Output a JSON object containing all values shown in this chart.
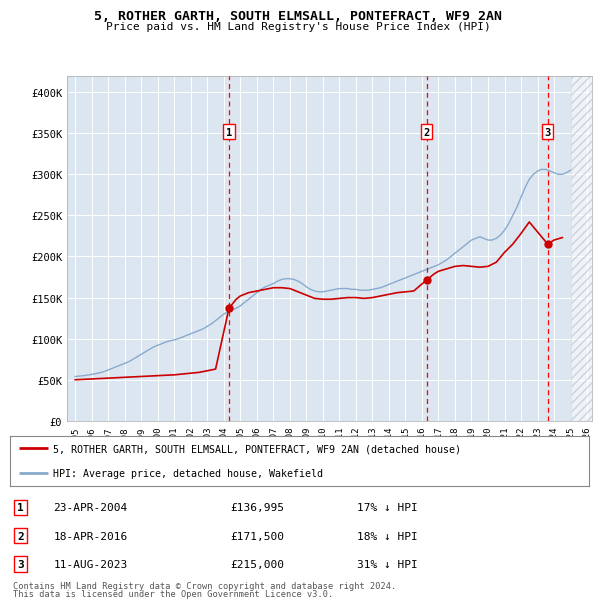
{
  "title_line1": "5, ROTHER GARTH, SOUTH ELMSALL, PONTEFRACT, WF9 2AN",
  "title_line2": "Price paid vs. HM Land Registry's House Price Index (HPI)",
  "background_color": "#dce6f1",
  "grid_color": "#ffffff",
  "ylim": [
    0,
    420000
  ],
  "yticks": [
    0,
    50000,
    100000,
    150000,
    200000,
    250000,
    300000,
    350000,
    400000
  ],
  "ytick_labels": [
    "£0",
    "£50K",
    "£100K",
    "£150K",
    "£200K",
    "£250K",
    "£300K",
    "£350K",
    "£400K"
  ],
  "xmin": 1995,
  "xmax": 2026,
  "xticks": [
    1995,
    1996,
    1997,
    1998,
    1999,
    2000,
    2001,
    2002,
    2003,
    2004,
    2005,
    2006,
    2007,
    2008,
    2009,
    2010,
    2011,
    2012,
    2013,
    2014,
    2015,
    2016,
    2017,
    2018,
    2019,
    2020,
    2021,
    2022,
    2023,
    2024,
    2025,
    2026
  ],
  "legend_property_label": "5, ROTHER GARTH, SOUTH ELMSALL, PONTEFRACT, WF9 2AN (detached house)",
  "legend_hpi_label": "HPI: Average price, detached house, Wakefield",
  "property_color": "#cc0000",
  "hpi_color": "#88aacc",
  "sale_dates": [
    2004.31,
    2016.29,
    2023.62
  ],
  "sale_prices": [
    136995,
    171500,
    215000
  ],
  "sale_labels": [
    "1",
    "2",
    "3"
  ],
  "sale_pct": [
    "17% ↓ HPI",
    "18% ↓ HPI",
    "31% ↓ HPI"
  ],
  "sale_date_strs": [
    "23-APR-2004",
    "18-APR-2016",
    "11-AUG-2023"
  ],
  "sale_price_strs": [
    "£136,995",
    "£171,500",
    "£215,000"
  ],
  "footer_line1": "Contains HM Land Registry data © Crown copyright and database right 2024.",
  "footer_line2": "This data is licensed under the Open Government Licence v3.0.",
  "hpi_x": [
    1995,
    1995.25,
    1995.5,
    1995.75,
    1996,
    1996.25,
    1996.5,
    1996.75,
    1997,
    1997.25,
    1997.5,
    1997.75,
    1998,
    1998.25,
    1998.5,
    1998.75,
    1999,
    1999.25,
    1999.5,
    1999.75,
    2000,
    2000.25,
    2000.5,
    2000.75,
    2001,
    2001.25,
    2001.5,
    2001.75,
    2002,
    2002.25,
    2002.5,
    2002.75,
    2003,
    2003.25,
    2003.5,
    2003.75,
    2004,
    2004.25,
    2004.5,
    2004.75,
    2005,
    2005.25,
    2005.5,
    2005.75,
    2006,
    2006.25,
    2006.5,
    2006.75,
    2007,
    2007.25,
    2007.5,
    2007.75,
    2008,
    2008.25,
    2008.5,
    2008.75,
    2009,
    2009.25,
    2009.5,
    2009.75,
    2010,
    2010.25,
    2010.5,
    2010.75,
    2011,
    2011.25,
    2011.5,
    2011.75,
    2012,
    2012.25,
    2012.5,
    2012.75,
    2013,
    2013.25,
    2013.5,
    2013.75,
    2014,
    2014.25,
    2014.5,
    2014.75,
    2015,
    2015.25,
    2015.5,
    2015.75,
    2016,
    2016.25,
    2016.5,
    2016.75,
    2017,
    2017.25,
    2017.5,
    2017.75,
    2018,
    2018.25,
    2018.5,
    2018.75,
    2019,
    2019.25,
    2019.5,
    2019.75,
    2020,
    2020.25,
    2020.5,
    2020.75,
    2021,
    2021.25,
    2021.5,
    2021.75,
    2022,
    2022.25,
    2022.5,
    2022.75,
    2023,
    2023.25,
    2023.5,
    2023.75,
    2024,
    2024.25,
    2024.5,
    2024.75,
    2025
  ],
  "hpi_y": [
    54000,
    54500,
    55000,
    55800,
    56500,
    57500,
    58500,
    60000,
    62000,
    64000,
    66000,
    68000,
    70000,
    72000,
    75000,
    78000,
    81000,
    84000,
    87000,
    90000,
    92000,
    94000,
    96000,
    97500,
    98500,
    100000,
    102000,
    104000,
    106000,
    108000,
    110000,
    112000,
    115000,
    118000,
    122000,
    126000,
    130000,
    133000,
    135000,
    137000,
    140000,
    144000,
    148000,
    152000,
    156000,
    160000,
    163000,
    165000,
    167000,
    170000,
    172000,
    173000,
    173000,
    172000,
    170000,
    167000,
    163000,
    160000,
    158000,
    157000,
    157000,
    158000,
    159000,
    160000,
    161000,
    161000,
    161000,
    160000,
    160000,
    159000,
    159000,
    159000,
    160000,
    161000,
    162000,
    164000,
    166000,
    168000,
    170000,
    172000,
    174000,
    176000,
    178000,
    180000,
    182000,
    184000,
    186000,
    188000,
    190000,
    193000,
    196000,
    200000,
    204000,
    208000,
    212000,
    216000,
    220000,
    222000,
    224000,
    222000,
    220000,
    220000,
    222000,
    226000,
    232000,
    240000,
    250000,
    260000,
    272000,
    284000,
    294000,
    300000,
    304000,
    306000,
    306000,
    304000,
    302000,
    300000,
    300000,
    302000,
    305000
  ],
  "prop_x": [
    1995,
    1995.5,
    1996,
    1996.5,
    1997,
    1997.5,
    1998,
    1998.5,
    1999,
    1999.5,
    2000,
    2000.5,
    2001,
    2001.5,
    2002,
    2002.5,
    2003,
    2003.5,
    2004.31,
    2004.75,
    2005,
    2005.5,
    2006,
    2006.5,
    2007,
    2007.5,
    2008,
    2008.5,
    2009,
    2009.5,
    2010,
    2010.5,
    2011,
    2011.5,
    2012,
    2012.5,
    2013,
    2013.5,
    2014,
    2014.5,
    2015,
    2015.5,
    2016.29,
    2016.75,
    2017,
    2017.5,
    2018,
    2018.5,
    2019,
    2019.5,
    2020,
    2020.5,
    2021,
    2021.5,
    2022,
    2022.5,
    2023.62,
    2024,
    2024.5
  ],
  "prop_y": [
    50000,
    50500,
    51000,
    51500,
    52000,
    52500,
    53000,
    53500,
    54000,
    54500,
    55000,
    55500,
    56000,
    57000,
    58000,
    59000,
    61000,
    63000,
    136995,
    148000,
    152000,
    156000,
    158000,
    160000,
    162000,
    162000,
    161000,
    157000,
    153000,
    149000,
    148000,
    148000,
    149000,
    150000,
    150000,
    149000,
    150000,
    152000,
    154000,
    156000,
    157000,
    158000,
    171500,
    179000,
    182000,
    185000,
    188000,
    189000,
    188000,
    187000,
    188000,
    193000,
    205000,
    215000,
    228000,
    242000,
    215000,
    220000,
    223000
  ]
}
